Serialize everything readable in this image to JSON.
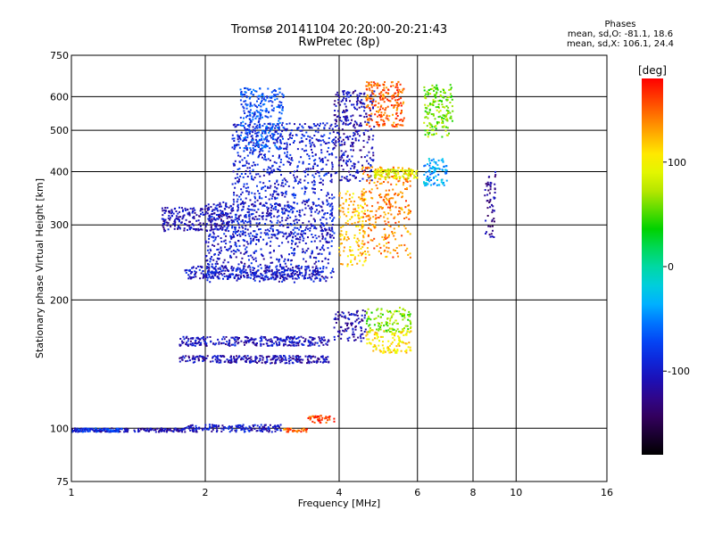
{
  "chart_data": {
    "type": "scatter",
    "title": "Tromsø 20141104 20:20:00-20:21:43",
    "subtitle": "RwPretec (8p)",
    "phases": {
      "heading": "Phases",
      "line_o": "mean, sd,O: -81.1, 18.6",
      "line_x": "mean, sd,X: 106.1, 24.4"
    },
    "xlabel": "Frequency [MHz]",
    "ylabel": "Stationary phase Virtual Height [km]",
    "x_scale": "log",
    "y_scale": "log",
    "xlim": [
      1,
      16
    ],
    "ylim": [
      75,
      750
    ],
    "x_ticks": [
      1,
      2,
      4,
      6,
      8,
      10,
      16
    ],
    "y_ticks": [
      75,
      100,
      200,
      300,
      400,
      500,
      600,
      750
    ],
    "grid": true,
    "colorbar": {
      "label": "[deg]",
      "range": [
        -180,
        180
      ],
      "ticks": [
        100,
        0,
        -100
      ]
    },
    "traces": [
      {
        "f0": 1.0,
        "f1": 1.8,
        "h": 99,
        "phase": -110,
        "spread": 1
      },
      {
        "f0": 1.0,
        "f1": 1.3,
        "h": 99,
        "phase": -80,
        "spread": 1
      },
      {
        "f0": 1.8,
        "f1": 3.0,
        "h": 100,
        "phase": -100,
        "spread": 2
      },
      {
        "f0": 3.0,
        "f1": 3.4,
        "h": 99,
        "phase": 150,
        "spread": 1
      },
      {
        "f0": 3.4,
        "f1": 3.9,
        "h": 105,
        "phase": 160,
        "spread": 2
      },
      {
        "f0": 1.75,
        "f1": 3.8,
        "h": 160,
        "phase": -105,
        "spread": 4
      },
      {
        "f0": 1.75,
        "f1": 3.8,
        "h": 145,
        "phase": -110,
        "spread": 3
      },
      {
        "f0": 1.8,
        "f1": 3.7,
        "h": 232,
        "phase": -100,
        "spread": 8
      },
      {
        "f0": 1.6,
        "f1": 2.3,
        "h": 310,
        "phase": -110,
        "spread": 20
      },
      {
        "f0": 2.0,
        "f1": 3.9,
        "h": 280,
        "phase": -100,
        "spread": 60
      },
      {
        "f0": 2.3,
        "f1": 3.9,
        "h": 400,
        "phase": -95,
        "spread": 120
      },
      {
        "f0": 2.4,
        "f1": 3.0,
        "h": 540,
        "phase": -70,
        "spread": 90
      },
      {
        "f0": 3.9,
        "f1": 4.8,
        "h": 500,
        "phase": -110,
        "spread": 120
      },
      {
        "f0": 3.9,
        "f1": 4.6,
        "h": 175,
        "phase": -110,
        "spread": 15
      },
      {
        "f0": 4.0,
        "f1": 4.6,
        "h": 300,
        "phase": 120,
        "spread": 60
      },
      {
        "f0": 4.5,
        "f1": 5.8,
        "h": 330,
        "phase": 140,
        "spread": 80
      },
      {
        "f0": 4.6,
        "f1": 5.6,
        "h": 580,
        "phase": 150,
        "spread": 70
      },
      {
        "f0": 4.6,
        "f1": 5.8,
        "h": 180,
        "phase": 60,
        "spread": 12
      },
      {
        "f0": 4.6,
        "f1": 5.8,
        "h": 160,
        "phase": 110,
        "spread": 10
      },
      {
        "f0": 4.8,
        "f1": 6.0,
        "h": 395,
        "phase": 90,
        "spread": 10
      },
      {
        "f0": 6.2,
        "f1": 7.0,
        "h": 400,
        "phase": -40,
        "spread": 30
      },
      {
        "f0": 6.2,
        "f1": 7.2,
        "h": 560,
        "phase": 60,
        "spread": 80
      },
      {
        "f0": 8.5,
        "f1": 9.0,
        "h": 340,
        "phase": -120,
        "spread": 60
      }
    ]
  }
}
